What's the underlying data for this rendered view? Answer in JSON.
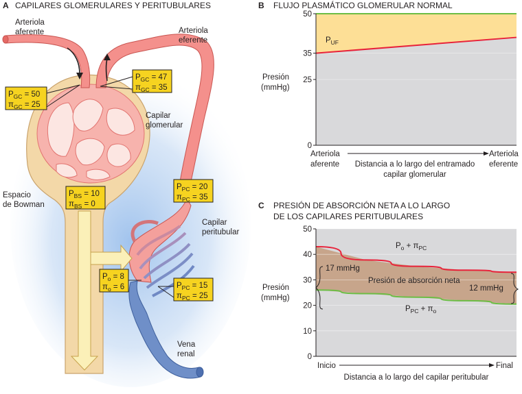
{
  "panel_a": {
    "letter": "A",
    "title": "CAPILARES GLOMERULARES Y PERITUBULARES",
    "labels": {
      "afferent_1": "Arteriola",
      "afferent_2": "aferente",
      "efferent_1": "Arteriola",
      "efferent_2": "eferente",
      "glom_cap_1": "Capilar",
      "glom_cap_2": "glomerular",
      "bowman_1": "Espacio",
      "bowman_2": "de Bowman",
      "peritub_1": "Capilar",
      "peritub_2": "peritubular",
      "vein_1": "Vena",
      "vein_2": "renal"
    },
    "boxes": {
      "gc_in": {
        "l1": "P",
        "s1": "GC",
        "v1": " = 50",
        "l2": "π",
        "s2": "GC",
        "v2": " = 25"
      },
      "gc_out": {
        "l1": "P",
        "s1": "GC",
        "v1": " = 47",
        "l2": "π",
        "s2": "GC",
        "v2": " = 35"
      },
      "bs": {
        "l1": "P",
        "s1": "BS",
        "v1": " = 10",
        "l2": "π",
        "s2": "BS",
        "v2": " = 0"
      },
      "pc_top": {
        "l1": "P",
        "s1": "PC",
        "v1": " = 20",
        "l2": "π",
        "s2": "PC",
        "v2": " = 35"
      },
      "o": {
        "l1": "P",
        "s1": "o",
        "v1": " = 8",
        "l2": "π",
        "s2": "o",
        "v2": " = 6"
      },
      "pc_bot": {
        "l1": "P",
        "s1": "PC",
        "v1": " = 15",
        "l2": "π",
        "s2": "PC",
        "v2": " = 25"
      }
    }
  },
  "panel_b": {
    "letter": "B",
    "title": "FLUJO PLASMÁTICO GLOMERULAR NORMAL",
    "ylabel_1": "Presión",
    "ylabel_2": "(mmHg)",
    "area_label": "P",
    "area_label_sub": "UF",
    "x_left_1": "Arteriola",
    "x_left_2": "aferente",
    "x_right_1": "Arteriola",
    "x_right_2": "eferente",
    "xlabel_1": "Distancia a lo largo del entramado",
    "xlabel_2": "capilar glomerular"
  },
  "panel_c": {
    "letter": "C",
    "title_1": "PRESIÓN DE ABSORCIÓN NETA A LO LARGO",
    "title_2": "DE LOS CAPILARES PERITUBULARES",
    "ylabel_1": "Presión",
    "ylabel_2": "(mmHg)",
    "x_start": "Inicio",
    "x_end": "Final",
    "xlabel": "Distancia a lo largo del capilar peritubular",
    "upper_label": "P",
    "upper_label_sub1": "o",
    "upper_label_mid": " + π",
    "upper_label_sub2": "PC",
    "lower_label": "P",
    "lower_label_sub1": "PC",
    "lower_label_mid": " + π",
    "lower_label_sub2": "o",
    "area_label": "Presión de absorción neta",
    "left_gap": "17 mmHg",
    "right_gap": "12 mmHg"
  },
  "colors": {
    "plasma_area": "#fddf96",
    "chart_bg": "#d9d9db",
    "absorption_area": "#c7a58b",
    "red_line": "#e8223a",
    "green_line": "#6cbd45",
    "artery": "#f4908c",
    "vein": "#6f8fc8",
    "tubule": "#f3d8a8",
    "value_box": "#f6d320"
  },
  "chart_data": [
    {
      "type": "area",
      "x_start_label": "Arteriola aferente",
      "x_end_label": "Arteriola eferente",
      "xlabel": "Distancia a lo largo del entramado capilar glomerular",
      "ylabel": "Presión (mmHg)",
      "yticks": [
        0,
        25,
        35,
        50
      ],
      "ylim": [
        0,
        50
      ],
      "x": [
        0,
        1
      ],
      "series": [
        {
          "values": [
            50,
            50
          ],
          "color": "#6cbd45"
        },
        {
          "values": [
            35,
            41
          ],
          "color": "#e8223a"
        }
      ],
      "area_label": "PUF"
    },
    {
      "type": "area",
      "x_start_label": "Inicio",
      "x_end_label": "Final",
      "xlabel": "Distancia a lo largo del capilar peritubular",
      "ylabel": "Presión (mmHg)",
      "yticks": [
        0,
        10,
        20,
        30,
        40,
        50
      ],
      "ylim": [
        0,
        50
      ],
      "x": [
        0,
        0.25,
        0.5,
        0.75,
        1
      ],
      "series": [
        {
          "name": "Po + πPC",
          "values": [
            43,
            37.8,
            35.3,
            33.8,
            33
          ],
          "color": "#e8223a"
        },
        {
          "name": "PPC + πo",
          "values": [
            26,
            24.6,
            23.2,
            21.8,
            20.5
          ],
          "color": "#6cbd45"
        }
      ],
      "annotations": [
        "17 mmHg",
        "12 mmHg",
        "Presión de absorción neta"
      ]
    }
  ]
}
